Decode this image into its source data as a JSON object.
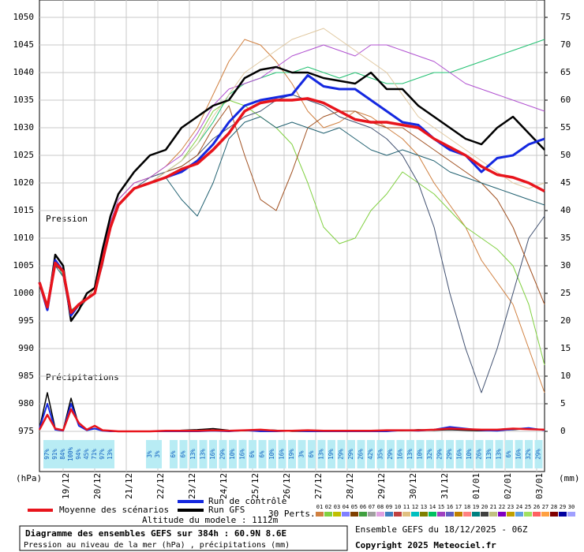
{
  "chart_data": {
    "type": "line",
    "title": "Diagramme des ensembles GEFS sur 384h : 60.9N 8.6E",
    "subtitle": "Pression au niveau de la mer (hPa) , précipitations (mm)",
    "run_info": "Ensemble GEFS du 18/12/2025 - 06Z",
    "copyright": "Copyright 2025 Meteociel.fr",
    "altitude": "Altitude du modele : 1112m",
    "y_label": "(hPa)",
    "y2_label": "(mm)",
    "pressure_label": "Pression",
    "precip_label": "Précipitations",
    "perturbation_count_label": "30 Perts.",
    "grid": true,
    "xlim": [
      0,
      384
    ],
    "ylim": [
      975,
      1050
    ],
    "y2lim": [
      0,
      75
    ],
    "yticks": [
      975,
      980,
      985,
      990,
      995,
      1000,
      1005,
      1010,
      1015,
      1020,
      1025,
      1030,
      1035,
      1040,
      1045,
      1050
    ],
    "y2ticks": [
      0,
      5,
      10,
      15,
      20,
      25,
      30,
      35,
      40,
      45,
      50,
      55,
      60,
      65,
      70,
      75
    ],
    "xticks": [
      {
        "value": 18,
        "label": "19/12"
      },
      {
        "value": 42,
        "label": "20/12"
      },
      {
        "value": 66,
        "label": "21/12"
      },
      {
        "value": 90,
        "label": "22/12"
      },
      {
        "value": 114,
        "label": "23/12"
      },
      {
        "value": 138,
        "label": "24/12"
      },
      {
        "value": 162,
        "label": "25/12"
      },
      {
        "value": 186,
        "label": "26/12"
      },
      {
        "value": 210,
        "label": "27/12"
      },
      {
        "value": 234,
        "label": "28/12"
      },
      {
        "value": 258,
        "label": "29/12"
      },
      {
        "value": 282,
        "label": "30/12"
      },
      {
        "value": 306,
        "label": "31/12"
      },
      {
        "value": 330,
        "label": "01/01"
      },
      {
        "value": 354,
        "label": "02/01"
      },
      {
        "value": 378,
        "label": "03/01"
      }
    ],
    "x": [
      0,
      6,
      12,
      18,
      24,
      30,
      36,
      42,
      48,
      54,
      60,
      72,
      84,
      96,
      108,
      120,
      132,
      144,
      156,
      168,
      180,
      192,
      204,
      216,
      228,
      240,
      252,
      264,
      276,
      288,
      300,
      312,
      324,
      336,
      348,
      360,
      372,
      384
    ],
    "series": [
      {
        "name": "Moyenne des scénarios",
        "color": "#e8141c",
        "width": 3.5,
        "values": [
          1002,
          997.5,
          1005.5,
          1004,
          996.5,
          998,
          999,
          1000,
          1006,
          1012,
          1016,
          1019,
          1020,
          1021,
          1022.5,
          1023.5,
          1026,
          1029,
          1033,
          1034.5,
          1035,
          1035,
          1035.3,
          1034.5,
          1033,
          1031.5,
          1031,
          1031,
          1030.5,
          1030,
          1028,
          1026.5,
          1025,
          1023,
          1021.5,
          1021,
          1020,
          1018.5
        ]
      },
      {
        "name": "Run de contrôle",
        "color": "#1428e0",
        "width": 3,
        "values": [
          1002,
          997,
          1006,
          1004,
          996,
          998,
          999,
          1000,
          1006,
          1012,
          1016,
          1019,
          1020,
          1021,
          1022,
          1024,
          1027,
          1031,
          1034,
          1035,
          1035.5,
          1036,
          1039.5,
          1037.5,
          1037,
          1037,
          1035,
          1033,
          1031,
          1030.5,
          1028,
          1026,
          1025,
          1022,
          1024.5,
          1025,
          1027,
          1028
        ]
      },
      {
        "name": "Run GFS",
        "color": "#000000",
        "width": 2.5,
        "values": [
          1002,
          997,
          1007,
          1005,
          995,
          997,
          1000,
          1001,
          1008,
          1014,
          1018,
          1022,
          1025,
          1026,
          1030,
          1032,
          1034,
          1035,
          1039,
          1040.5,
          1041,
          1040,
          1040,
          1039,
          1038.5,
          1038,
          1040,
          1037,
          1037,
          1034,
          1032,
          1030,
          1028,
          1027,
          1030,
          1032,
          1029,
          1026
        ]
      },
      {
        "color": "#d08040",
        "values": [
          1002,
          998,
          1006,
          1004,
          996,
          998,
          999,
          1001,
          1007,
          1013,
          1017,
          1020,
          1021,
          1023,
          1026,
          1030,
          1036,
          1042,
          1046,
          1045,
          1042,
          1038,
          1033,
          1030,
          1031,
          1033,
          1032,
          1030,
          1028,
          1025,
          1020,
          1016,
          1012,
          1006,
          1002,
          998,
          990,
          982
        ]
      },
      {
        "color": "#80d040",
        "values": [
          1002,
          997,
          1005,
          1004,
          995,
          997,
          999,
          1000,
          1006,
          1012,
          1016,
          1019,
          1020,
          1022,
          1024,
          1028,
          1033,
          1035,
          1034,
          1032,
          1030,
          1027,
          1020,
          1012,
          1009,
          1010,
          1015,
          1018,
          1022,
          1020,
          1018,
          1015,
          1012,
          1010,
          1008,
          1005,
          998,
          987
        ]
      },
      {
        "color": "#20c070",
        "values": [
          1002,
          998,
          1006,
          1003,
          997,
          998,
          1000,
          1001,
          1006,
          1012,
          1016,
          1019,
          1020,
          1022,
          1024,
          1027,
          1031,
          1036,
          1038,
          1039,
          1040,
          1040,
          1041,
          1040,
          1039,
          1040,
          1039,
          1038,
          1038,
          1039,
          1040,
          1040,
          1041,
          1042,
          1043,
          1044,
          1045,
          1046
        ]
      },
      {
        "color": "#405070",
        "values": [
          1002,
          997,
          1005,
          1004,
          996,
          998,
          999,
          1000,
          1005,
          1012,
          1016,
          1019,
          1021,
          1022,
          1023,
          1025,
          1028,
          1030,
          1032,
          1033,
          1035,
          1036,
          1035,
          1034,
          1032,
          1031,
          1030,
          1028,
          1025,
          1020,
          1012,
          1000,
          990,
          982,
          990,
          1000,
          1010,
          1014
        ]
      },
      {
        "color": "#b050d0",
        "values": [
          1002,
          998,
          1006,
          1004,
          996,
          998,
          1000,
          1001,
          1007,
          1013,
          1017,
          1020,
          1021,
          1023,
          1025,
          1029,
          1034,
          1037,
          1038,
          1039,
          1041,
          1043,
          1044,
          1045,
          1044,
          1043,
          1045,
          1045,
          1044,
          1043,
          1042,
          1040,
          1038,
          1037,
          1036,
          1035,
          1034,
          1033
        ]
      },
      {
        "color": "#a05020",
        "values": [
          1002,
          997,
          1005,
          1004,
          995,
          997,
          999,
          1000,
          1006,
          1012,
          1016,
          1019,
          1020,
          1022,
          1023,
          1025,
          1030,
          1034,
          1025,
          1017,
          1015,
          1022,
          1030,
          1032,
          1033,
          1033,
          1031,
          1030,
          1030,
          1028,
          1026,
          1024,
          1022,
          1020,
          1017,
          1012,
          1005,
          998
        ]
      },
      {
        "color": "#e0c8a0",
        "values": [
          1002,
          998,
          1006,
          1004,
          996,
          998,
          1000,
          1001,
          1006,
          1012,
          1016,
          1019,
          1020,
          1022,
          1024,
          1027,
          1032,
          1036,
          1040,
          1042,
          1044,
          1046,
          1047,
          1048,
          1046,
          1044,
          1042,
          1040,
          1036,
          1032,
          1030,
          1028,
          1026,
          1024,
          1022,
          1020,
          1019,
          1020
        ]
      },
      {
        "color": "#206070",
        "values": [
          1002,
          997,
          1005,
          1003,
          995,
          997,
          999,
          1000,
          1006,
          1012,
          1016,
          1019,
          1020,
          1021,
          1017,
          1014,
          1020,
          1028,
          1031,
          1032,
          1030,
          1031,
          1030,
          1029,
          1030,
          1028,
          1026,
          1025,
          1026,
          1025,
          1024,
          1022,
          1021,
          1020,
          1019,
          1018,
          1017,
          1016
        ]
      },
      {
        "axis": "y2",
        "color": "#e8141c",
        "width": 2.5,
        "values": [
          0.3,
          3,
          0.5,
          0.2,
          4,
          1.5,
          0.3,
          1,
          0.2,
          0.1,
          0,
          0,
          0,
          0.1,
          0.1,
          0.1,
          0.2,
          0.1,
          0.2,
          0.3,
          0.1,
          0.1,
          0.2,
          0.1,
          0.1,
          0.1,
          0.1,
          0.2,
          0.2,
          0.2,
          0.3,
          0.5,
          0.4,
          0.3,
          0.3,
          0.5,
          0.4,
          0.3
        ]
      },
      {
        "axis": "y2",
        "color": "#1428e0",
        "width": 2,
        "values": [
          0.5,
          5,
          0.3,
          0.1,
          5,
          1,
          0.2,
          0.5,
          0.1,
          0,
          0,
          0,
          0,
          0,
          0,
          0,
          0.1,
          0,
          0.2,
          0,
          0,
          0.1,
          0,
          0,
          0,
          0,
          0,
          0,
          0.2,
          0.1,
          0.3,
          0.8,
          0.5,
          0.2,
          0.1,
          0.4,
          0.6,
          0.2
        ]
      },
      {
        "axis": "y2",
        "color": "#000000",
        "width": 1.5,
        "values": [
          0.5,
          7,
          0.5,
          0.2,
          6,
          1,
          0.3,
          0.5,
          0.2,
          0,
          0,
          0,
          0,
          0,
          0.2,
          0.3,
          0.5,
          0.2,
          0.1,
          0.3,
          0.2,
          0,
          0,
          0.1,
          0,
          0,
          0.1,
          0.2,
          0.1,
          0.3,
          0.2,
          0.3,
          0.2,
          0.1,
          0.2,
          0.3,
          0.5,
          0.3
        ]
      }
    ],
    "precip_probability": {
      "x": [
        6,
        12,
        18,
        24,
        30,
        36,
        42,
        48,
        54,
        84,
        90,
        102,
        109.5,
        117,
        124.5,
        132,
        139.5,
        147,
        154.5,
        162,
        169.5,
        177,
        184.5,
        192,
        199.5,
        207,
        214.5,
        222,
        229.5,
        237,
        244.5,
        252,
        259.5,
        267,
        274.5,
        282,
        289.5,
        297,
        304.5,
        312,
        319.5,
        327,
        334.5,
        342,
        349.5,
        357,
        364.5,
        372,
        379.5
      ],
      "labels": [
        "97%",
        "91%",
        "84%",
        "100%",
        "94%",
        "45%",
        "71%",
        "97%",
        "13%",
        "3%",
        "3%",
        "6%",
        "6%",
        "13%",
        "13%",
        "16%",
        "29%",
        "10%",
        "16%",
        "6%",
        "6%",
        "10%",
        "16%",
        "19%",
        "3%",
        "6%",
        "13%",
        "19%",
        "29%",
        "29%",
        "26%",
        "42%",
        "35%",
        "29%",
        "16%",
        "13%",
        "10%",
        "32%",
        "29%",
        "29%",
        "16%",
        "10%",
        "26%",
        "13%",
        "13%",
        "6%",
        "16%",
        "32%",
        "29%"
      ]
    },
    "perturbation_legend": [
      {
        "label": "01",
        "color": "#d08040"
      },
      {
        "label": "02",
        "color": "#80d040"
      },
      {
        "label": "03",
        "color": "#c0c000"
      },
      {
        "label": "04",
        "color": "#8080ff"
      },
      {
        "label": "05",
        "color": "#804000"
      },
      {
        "label": "06",
        "color": "#40a040"
      },
      {
        "label": "07",
        "color": "#a0a0a0"
      },
      {
        "label": "08",
        "color": "#e0a0e0"
      },
      {
        "label": "09",
        "color": "#4080c0"
      },
      {
        "label": "10",
        "color": "#c04040"
      },
      {
        "label": "11",
        "color": "#e0c080"
      },
      {
        "label": "12",
        "color": "#00c0c0"
      },
      {
        "label": "13",
        "color": "#808000"
      },
      {
        "label": "14",
        "color": "#00c060"
      },
      {
        "label": "15",
        "color": "#a040c0"
      },
      {
        "label": "16",
        "color": "#6060c0"
      },
      {
        "label": "17",
        "color": "#c08000"
      },
      {
        "label": "18",
        "color": "#ff8080"
      },
      {
        "label": "19",
        "color": "#008080"
      },
      {
        "label": "20",
        "color": "#404040"
      },
      {
        "label": "21",
        "color": "#c0c080"
      },
      {
        "label": "22",
        "color": "#8000c0"
      },
      {
        "label": "23",
        "color": "#c0a000"
      },
      {
        "label": "24",
        "color": "#60a0e0"
      },
      {
        "label": "25",
        "color": "#a0e060"
      },
      {
        "label": "26",
        "color": "#ff6060"
      },
      {
        "label": "27",
        "color": "#ffa040"
      },
      {
        "label": "28",
        "color": "#800000"
      },
      {
        "label": "29",
        "color": "#0000a0"
      },
      {
        "label": "30",
        "color": "#a0a0ff"
      }
    ]
  }
}
